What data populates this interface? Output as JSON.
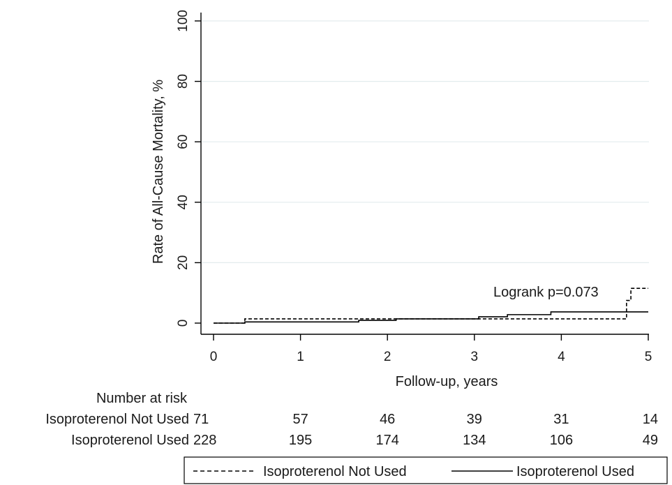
{
  "chart_data": {
    "type": "line",
    "title": "",
    "xlabel": "Follow-up, years",
    "ylabel": "Rate of All-Cause Mortality, %",
    "xlim": [
      0,
      5
    ],
    "ylim": [
      0,
      100
    ],
    "x_ticks": [
      0,
      1,
      2,
      3,
      4,
      5
    ],
    "y_ticks": [
      0,
      20,
      40,
      60,
      80,
      100
    ],
    "grid": "horizontal",
    "annotation": "Logrank p=0.073",
    "series": [
      {
        "name": "Isoproterenol Not Used",
        "style": "dashed",
        "color": "#000000",
        "steps": [
          [
            0,
            0
          ],
          [
            0.36,
            1.4
          ],
          [
            4.75,
            7.5
          ],
          [
            4.8,
            11.5
          ],
          [
            5.0,
            11.5
          ]
        ]
      },
      {
        "name": "Isoproterenol Used",
        "style": "solid",
        "color": "#000000",
        "steps": [
          [
            0,
            0
          ],
          [
            0.36,
            0.4
          ],
          [
            1.67,
            0.9
          ],
          [
            2.1,
            1.4
          ],
          [
            3.05,
            2.1
          ],
          [
            3.38,
            2.8
          ],
          [
            3.88,
            3.7
          ],
          [
            5.0,
            3.7
          ]
        ]
      }
    ],
    "risk_table": {
      "title": "Number at risk",
      "rows": [
        {
          "label": "Isoproterenol Not Used",
          "values": [
            "71",
            "57",
            "46",
            "39",
            "31",
            "14"
          ]
        },
        {
          "label": "Isoproterenol Used",
          "values": [
            "228",
            "195",
            "174",
            "134",
            "106",
            "49"
          ]
        }
      ]
    },
    "legend": {
      "position": "bottom",
      "items": [
        "Isoproterenol Not Used",
        "Isoproterenol Used"
      ]
    }
  }
}
